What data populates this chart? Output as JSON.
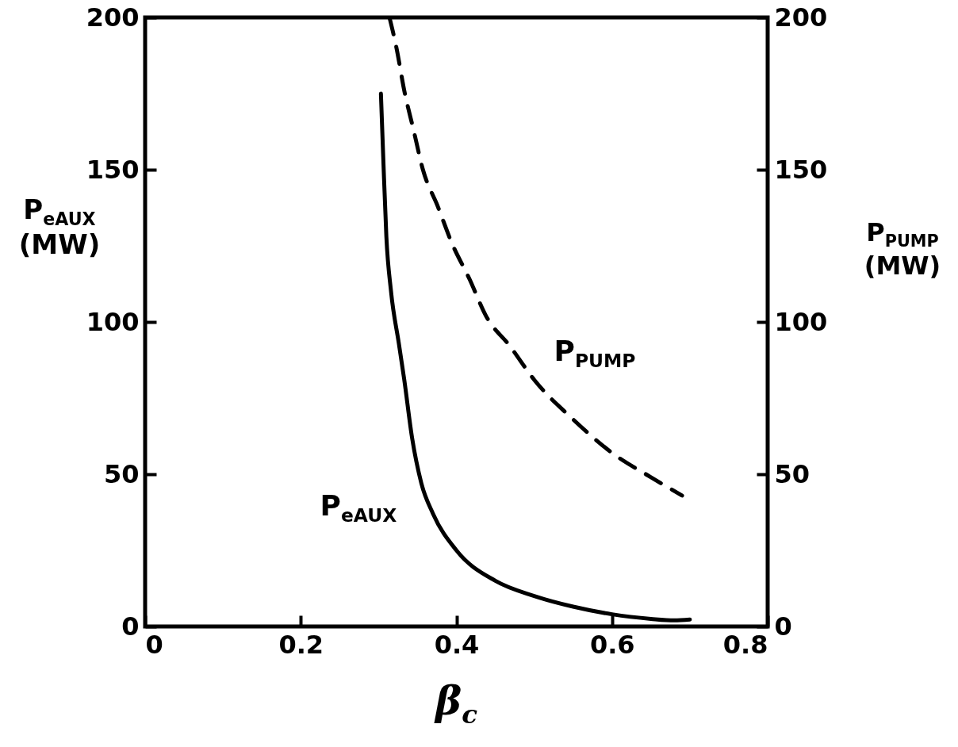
{
  "chart_data": {
    "type": "line",
    "xlabel": "β$_{c}$",
    "ylabel": "P$_{eAUX}$ (MW)",
    "y2label": "P$_{PUMP}$ (MW)",
    "xlim": [
      0,
      0.8
    ],
    "xticks": [
      0,
      0.2,
      0.4,
      0.6,
      0.8
    ],
    "ylim": [
      0,
      200
    ],
    "yticks": [
      0,
      50,
      100,
      150,
      200
    ],
    "y2lim": [
      0,
      200
    ],
    "y2ticks": [
      0,
      50,
      100,
      150,
      200
    ],
    "grid": false,
    "series": [
      {
        "color": "#000000",
        "line_style": "solid",
        "x": [
          0.303,
          0.306,
          0.31,
          0.316,
          0.326,
          0.333,
          0.343,
          0.355,
          0.37,
          0.4,
          0.45,
          0.5,
          0.55,
          0.6,
          0.65,
          0.68,
          0.7
        ],
        "values": [
          175,
          154,
          128,
          110,
          93,
          81,
          62,
          47,
          37,
          25,
          15,
          10,
          6.5,
          4,
          2.5,
          2,
          2.3
        ]
      },
      {
        "color": "#000000",
        "line_style": "dashed",
        "axis": "y2",
        "x": [
          0.314,
          0.323,
          0.333,
          0.345,
          0.357,
          0.376,
          0.394,
          0.417,
          0.438,
          0.469,
          0.5,
          0.55,
          0.6,
          0.65,
          0.69
        ],
        "values": [
          200,
          190,
          176,
          163,
          150,
          138,
          126,
          114,
          102,
          92,
          81,
          68,
          57,
          49,
          43
        ]
      }
    ],
    "annotations": [
      "P$_{eAUX}$",
      "P$_{PUMP}$"
    ]
  }
}
